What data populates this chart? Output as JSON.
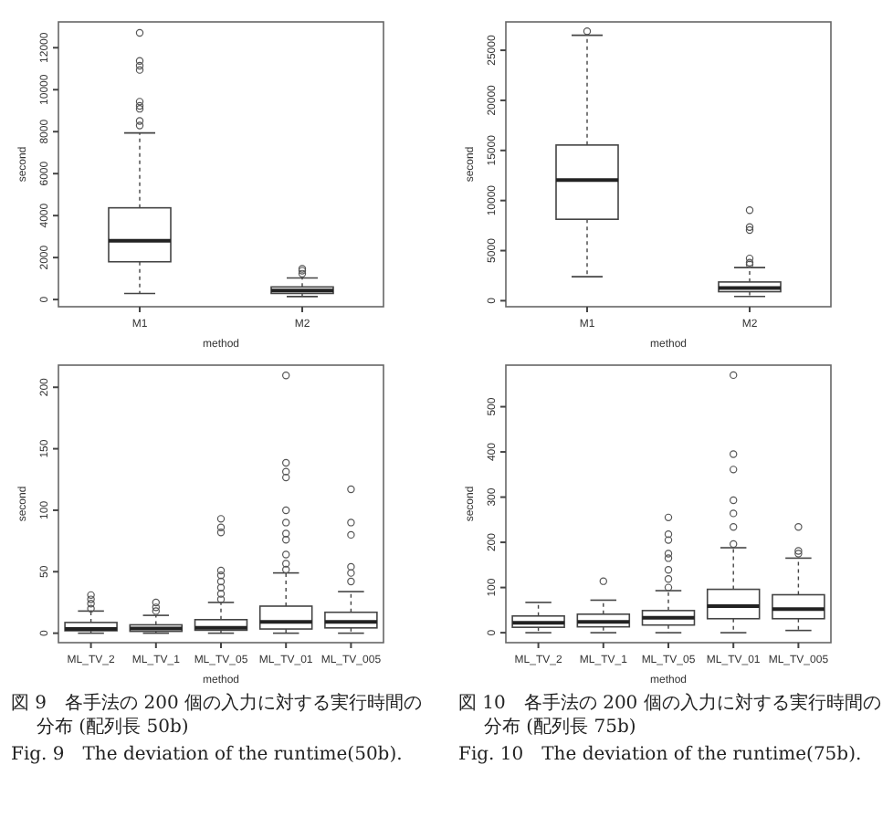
{
  "chart_data": [
    {
      "type": "box",
      "xlabel": "method",
      "ylabel": "second",
      "categories": [
        "M1",
        "M2"
      ],
      "ylim": [
        -343,
        13230
      ],
      "yticks": [
        0,
        2000,
        4000,
        6000,
        8000,
        10000,
        12000
      ],
      "boxes": [
        {
          "low": 290,
          "q1": 1800,
          "median": 2800,
          "q3": 4370,
          "high": 7940,
          "outliers": [
            8290,
            8510,
            9090,
            9230,
            9430,
            10940,
            11140,
            11370,
            12710
          ]
        },
        {
          "low": 140,
          "q1": 290,
          "median": 430,
          "q3": 600,
          "high": 1030,
          "outliers": [
            1230,
            1370,
            1460
          ]
        }
      ]
    },
    {
      "type": "box",
      "xlabel": "method",
      "ylabel": "second",
      "categories": [
        "M1",
        "M2"
      ],
      "ylim": [
        -600,
        27830
      ],
      "yticks": [
        0,
        5000,
        10000,
        15000,
        20000,
        25000
      ],
      "boxes": [
        {
          "low": 2400,
          "q1": 8130,
          "median": 12050,
          "q3": 15540,
          "high": 26500,
          "outliers": [
            26900
          ]
        },
        {
          "low": 420,
          "q1": 900,
          "median": 1270,
          "q3": 1870,
          "high": 3310,
          "outliers": [
            3610,
            3800,
            4220,
            7050,
            7350,
            9040
          ]
        }
      ]
    },
    {
      "type": "box",
      "xlabel": "method",
      "ylabel": "second",
      "categories": [
        "ML_TV_2",
        "ML_TV_1",
        "ML_TV_05",
        "ML_TV_01",
        "ML_TV_005"
      ],
      "ylim": [
        -7.7,
        218
      ],
      "yticks": [
        0,
        50,
        100,
        150,
        200
      ],
      "boxes": [
        {
          "low": 0,
          "q1": 2,
          "median": 3.4,
          "q3": 8.7,
          "high": 18,
          "outliers": [
            20,
            24,
            27.5,
            31
          ]
        },
        {
          "low": 0,
          "q1": 1.5,
          "median": 3.9,
          "q3": 6.8,
          "high": 14.5,
          "outliers": [
            18,
            21,
            25
          ]
        },
        {
          "low": 0,
          "q1": 2.4,
          "median": 4.3,
          "q3": 11,
          "high": 25,
          "outliers": [
            27.5,
            32,
            37,
            42,
            47,
            51,
            82,
            86,
            93
          ]
        },
        {
          "low": 0,
          "q1": 3.4,
          "median": 9.2,
          "q3": 22,
          "high": 49,
          "outliers": [
            51.7,
            56.5,
            64,
            76,
            81,
            90,
            100,
            126.6,
            131.4,
            138.6,
            209.7
          ]
        },
        {
          "low": 0,
          "q1": 4.3,
          "median": 9.2,
          "q3": 17,
          "high": 33.8,
          "outliers": [
            42,
            49,
            54,
            80,
            90,
            117
          ]
        }
      ],
      "annotations": [
        "図 9　各手法の 200 個の入力に対する実行時間の分布 (配列長 50b)",
        "Fig. 9　The deviation of the runtime(50b)."
      ]
    },
    {
      "type": "box",
      "xlabel": "method",
      "ylabel": "second",
      "categories": [
        "ML_TV_2",
        "ML_TV_1",
        "ML_TV_05",
        "ML_TV_01",
        "ML_TV_005"
      ],
      "ylim": [
        -22,
        592
      ],
      "yticks": [
        0,
        100,
        200,
        300,
        400,
        500
      ],
      "boxes": [
        {
          "low": 0,
          "q1": 12,
          "median": 22,
          "q3": 37,
          "high": 67
        },
        {
          "low": 0,
          "q1": 13,
          "median": 24,
          "q3": 41,
          "high": 72,
          "outliers": [
            114
          ]
        },
        {
          "low": 0,
          "q1": 17,
          "median": 33,
          "q3": 49,
          "high": 93,
          "outliers": [
            100,
            119,
            139,
            165,
            175,
            205,
            218,
            255
          ]
        },
        {
          "low": 0,
          "q1": 31,
          "median": 59,
          "q3": 96,
          "high": 188,
          "outliers": [
            196,
            234,
            264,
            293,
            361,
            395,
            570
          ]
        },
        {
          "low": 5,
          "q1": 31,
          "median": 52,
          "q3": 84,
          "high": 165,
          "outliers": [
            175,
            181,
            234
          ]
        }
      ],
      "annotations": [
        "図 10　各手法の 200 個の入力に対する実行時間の分布 (配列長 75b)",
        "Fig. 10　The deviation of the runtime(75b)."
      ]
    }
  ]
}
